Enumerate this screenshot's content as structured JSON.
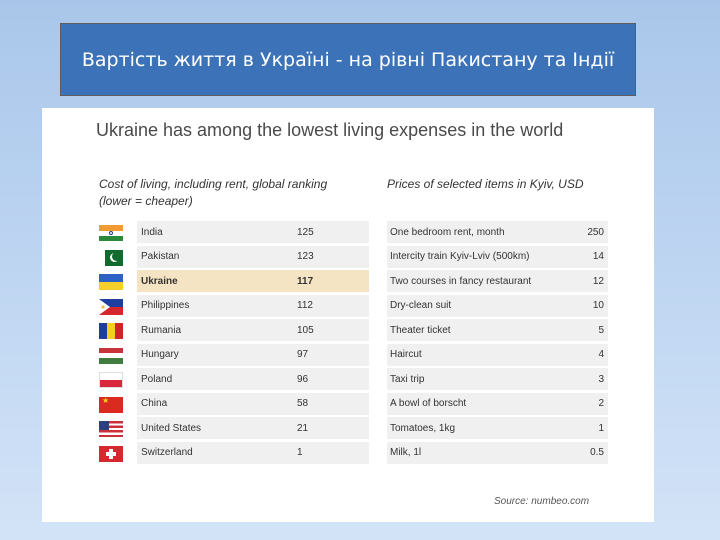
{
  "slide_title": "Вартість життя в Україні - на рівні Пакистану та Індії",
  "headline": "Ukraine has among the lowest living expenses in the world",
  "left_subtitle": "Cost of living, including rent, global ranking (lower = cheaper)",
  "right_subtitle": "Prices of selected items in Kyiv, USD",
  "rankings": [
    {
      "country": "India",
      "value": "125",
      "flag": "india-flag-icon"
    },
    {
      "country": "Pakistan",
      "value": "123",
      "flag": "pakistan-flag-icon"
    },
    {
      "country": "Ukraine",
      "value": "117",
      "flag": "ukraine-flag-icon"
    },
    {
      "country": "Philippines",
      "value": "112",
      "flag": "philippines-flag-icon"
    },
    {
      "country": "Rumania",
      "value": "105",
      "flag": "romania-flag-icon"
    },
    {
      "country": "Hungary",
      "value": "97",
      "flag": "hungary-flag-icon"
    },
    {
      "country": "Poland",
      "value": "96",
      "flag": "poland-flag-icon"
    },
    {
      "country": "China",
      "value": "58",
      "flag": "china-flag-icon"
    },
    {
      "country": "United States",
      "value": "21",
      "flag": "usa-flag-icon"
    },
    {
      "country": "Switzerland",
      "value": "1",
      "flag": "switzerland-flag-icon"
    }
  ],
  "prices": [
    {
      "item": "One bedroom rent, month",
      "value": "250"
    },
    {
      "item": "Intercity train Kyiv-Lviv (500km)",
      "value": "14"
    },
    {
      "item": "Two courses in fancy restaurant",
      "value": "12"
    },
    {
      "item": "Dry-clean suit",
      "value": "10"
    },
    {
      "item": "Theater ticket",
      "value": "5"
    },
    {
      "item": "Haircut",
      "value": "4"
    },
    {
      "item": "Taxi trip",
      "value": "3"
    },
    {
      "item": "A bowl of borscht",
      "value": "2"
    },
    {
      "item": "Tomatoes, 1kg",
      "value": "1"
    },
    {
      "item": "Milk, 1l",
      "value": "0.5"
    }
  ],
  "source": "Source: numbeo.com",
  "highlight_color": "#f5e4c3",
  "title_bar_color": "#3c73b8"
}
